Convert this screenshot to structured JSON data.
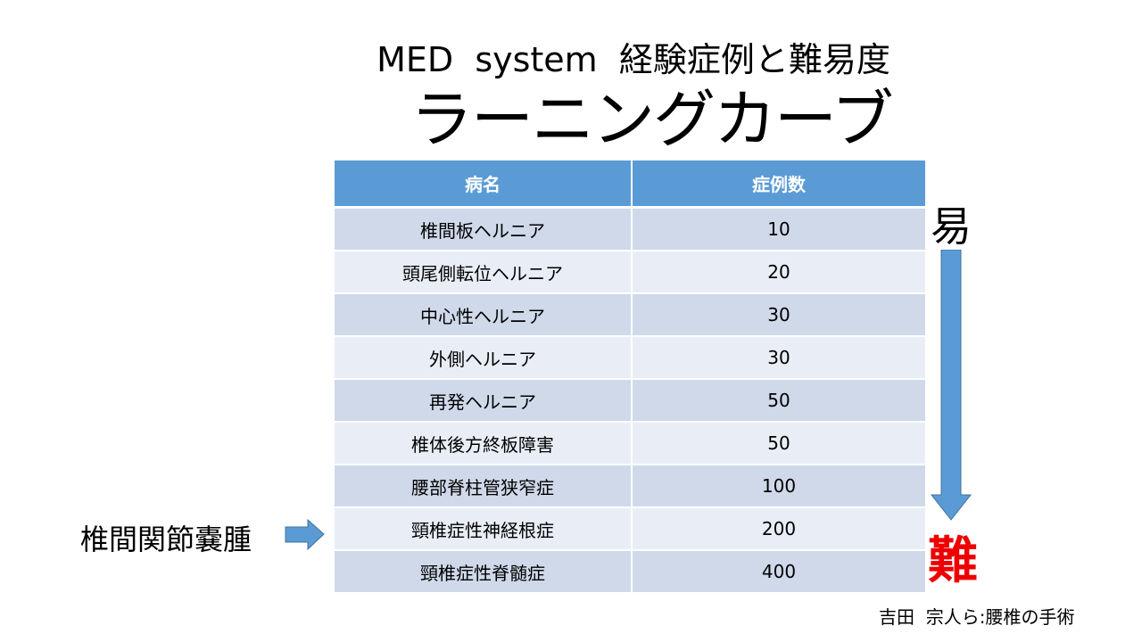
{
  "title": "MED  system  経験症例と難易度",
  "subtitle": "ラーニングカーブ",
  "table": {
    "headers": [
      "病名",
      "症例数"
    ],
    "rows": [
      [
        "椎間板ヘルニア",
        "10"
      ],
      [
        "頭尾側転位ヘルニア",
        "20"
      ],
      [
        "中心性ヘルニア",
        "30"
      ],
      [
        "外側ヘルニア",
        "30"
      ],
      [
        "再発ヘルニア",
        "50"
      ],
      [
        "椎体後方終板障害",
        "50"
      ],
      [
        "腰部脊柱管狭窄症",
        "100"
      ],
      [
        "頸椎症性神経根症",
        "200"
      ],
      [
        "頸椎症性脊髄症",
        "400"
      ]
    ]
  },
  "scale": {
    "easy": "易",
    "hard": "難"
  },
  "left_label": "椎間関節嚢腫",
  "source": "吉田  宗人ら:腰椎の手術",
  "colors": {
    "header": "#5b9bd5",
    "arrow": "#5b9bd5",
    "hard": "#ee0000"
  }
}
